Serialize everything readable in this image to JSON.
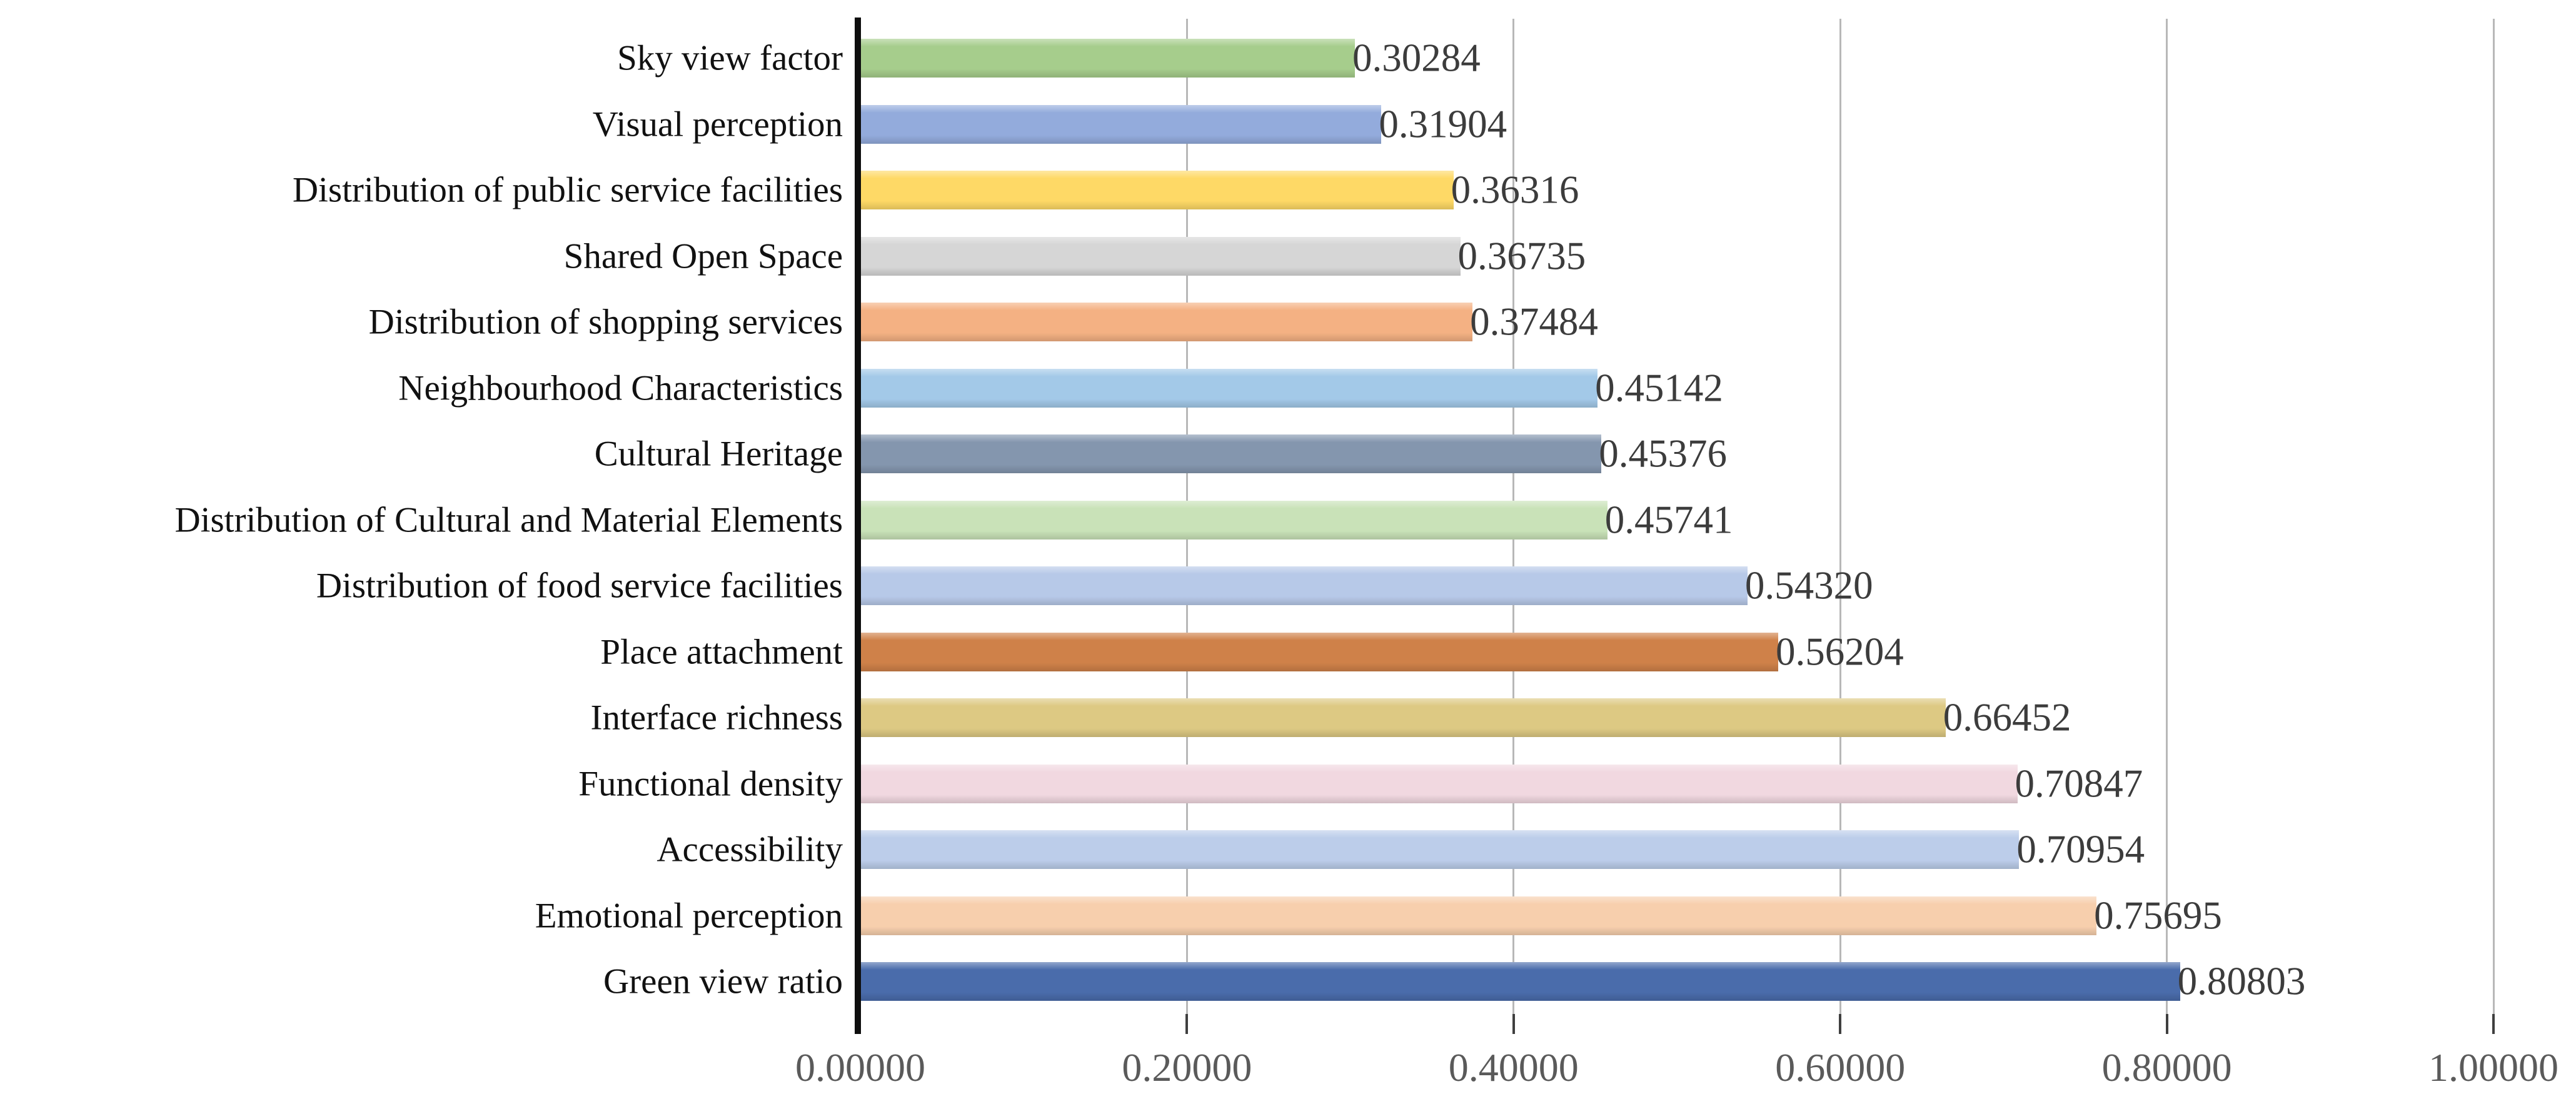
{
  "chart_data": {
    "type": "bar",
    "orientation": "horizontal",
    "title": "",
    "xlabel": "",
    "ylabel": "",
    "xlim": [
      0.0,
      1.0
    ],
    "grid": true,
    "legend_position": "none",
    "x_ticks": [
      {
        "value": 0.0,
        "label": "0.00000"
      },
      {
        "value": 0.2,
        "label": "0.20000"
      },
      {
        "value": 0.4,
        "label": "0.40000"
      },
      {
        "value": 0.6,
        "label": "0.60000"
      },
      {
        "value": 0.8,
        "label": "0.80000"
      },
      {
        "value": 1.0,
        "label": "1.00000"
      }
    ],
    "categories": [
      "Sky view factor",
      "Visual perception",
      "Distribution of public service facilities",
      "Shared Open Space",
      "Distribution of shopping services",
      "Neighbourhood Characteristics",
      "Cultural Heritage",
      "Distribution of Cultural and Material Elements",
      "Distribution of food service facilities",
      "Place attachment",
      "Interface richness",
      "Functional density",
      "Accessibility",
      "Emotional perception",
      "Green view ratio"
    ],
    "values": [
      0.30284,
      0.31904,
      0.36316,
      0.36735,
      0.37484,
      0.45142,
      0.45376,
      0.45741,
      0.5432,
      0.56204,
      0.66452,
      0.70847,
      0.70954,
      0.75695,
      0.80803
    ],
    "value_labels": [
      "0.30284",
      "0.31904",
      "0.36316",
      "0.36735",
      "0.37484",
      "0.45142",
      "0.45376",
      "0.45741",
      "0.54320",
      "0.56204",
      "0.66452",
      "0.70847",
      "0.70954",
      "0.75695",
      "0.80803"
    ],
    "bar_colors": [
      "#a6cd8c",
      "#93abdc",
      "#fed966",
      "#d6d6d6",
      "#f4b183",
      "#a3c9e8",
      "#8496ae",
      "#c9e2b8",
      "#b7c9e8",
      "#cf8149",
      "#ddc983",
      "#f1d8e0",
      "#bccdea",
      "#f7cfad",
      "#4a6cab"
    ],
    "colors": {
      "axis_line": "#0e0e0e",
      "gridline": "#7d7d7d",
      "tick_label": "#5a5a5a",
      "category_label": "#111111",
      "value_label": "#3c3c3c",
      "background": "#ffffff"
    }
  }
}
